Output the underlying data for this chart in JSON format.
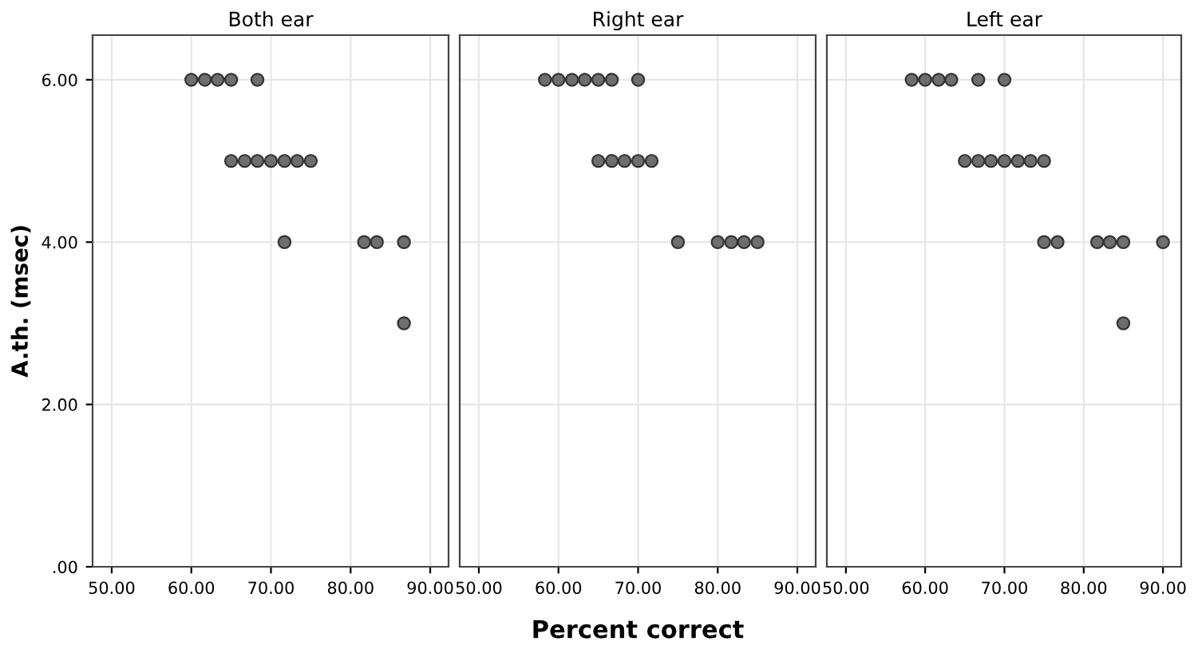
{
  "chart_data": [
    {
      "type": "scatter",
      "title": "Both ear",
      "ylabel": "A.th. (msec)",
      "marker": "circle",
      "grid": true,
      "color": "#6e6e6e",
      "x": [
        60,
        61.7,
        63.3,
        65,
        68.3,
        65,
        66.7,
        68.3,
        70,
        71.7,
        73.3,
        75,
        71.7,
        81.7,
        83.3,
        86.7,
        86.7
      ],
      "values": [
        6,
        6,
        6,
        6,
        6,
        5,
        5,
        5,
        5,
        5,
        5,
        5,
        4,
        4,
        4,
        4,
        3
      ],
      "xlim": [
        47.6,
        92.3
      ],
      "ylim": [
        0,
        6.55
      ],
      "xticks": [
        {
          "value": 50,
          "label": "50.00"
        },
        {
          "value": 60,
          "label": "60.00"
        },
        {
          "value": 70,
          "label": "70.00"
        },
        {
          "value": 80,
          "label": "80.00"
        },
        {
          "value": 90,
          "label": "90.00"
        }
      ],
      "yticks": [
        {
          "value": 0,
          "label": ".00"
        },
        {
          "value": 2,
          "label": "2.00"
        },
        {
          "value": 4,
          "label": "4.00"
        },
        {
          "value": 6,
          "label": "6.00"
        }
      ]
    },
    {
      "type": "scatter",
      "title": "Right ear",
      "xlabel": "Percent correct",
      "marker": "circle",
      "grid": true,
      "color": "#6e6e6e",
      "tick_labels": "x",
      "x": [
        58.3,
        60,
        61.7,
        63.3,
        65,
        66.7,
        70,
        65,
        66.7,
        68.3,
        70,
        71.7,
        75,
        80,
        81.7,
        83.3,
        85
      ],
      "values": [
        6,
        6,
        6,
        6,
        6,
        6,
        6,
        5,
        5,
        5,
        5,
        5,
        4,
        4,
        4,
        4,
        4
      ],
      "xlim": [
        47.6,
        92.3
      ],
      "ylim": [
        0,
        6.55
      ],
      "xticks": [
        {
          "value": 50,
          "label": "50.00"
        },
        {
          "value": 60,
          "label": "60.00"
        },
        {
          "value": 70,
          "label": "70.00"
        },
        {
          "value": 80,
          "label": "80.00"
        },
        {
          "value": 90,
          "label": "90.00"
        }
      ],
      "yticks": [
        {
          "value": 0,
          "label": null
        },
        {
          "value": 2,
          "label": null
        },
        {
          "value": 4,
          "label": null
        },
        {
          "value": 6,
          "label": null
        }
      ]
    },
    {
      "type": "scatter",
      "title": "Left ear",
      "marker": "circle",
      "grid": true,
      "color": "#6e6e6e",
      "tick_labels": "x",
      "x": [
        58.3,
        60,
        61.7,
        63.3,
        66.7,
        70,
        65,
        66.7,
        68.3,
        70,
        71.7,
        73.3,
        75,
        75,
        76.7,
        81.7,
        83.3,
        85,
        90,
        85
      ],
      "values": [
        6,
        6,
        6,
        6,
        6,
        6,
        5,
        5,
        5,
        5,
        5,
        5,
        5,
        4,
        4,
        4,
        4,
        4,
        4,
        3
      ],
      "xlim": [
        47.6,
        92.3
      ],
      "ylim": [
        0,
        6.55
      ],
      "xticks": [
        {
          "value": 50,
          "label": "50.00"
        },
        {
          "value": 60,
          "label": "60.00"
        },
        {
          "value": 70,
          "label": "70.00"
        },
        {
          "value": 80,
          "label": "80.00"
        },
        {
          "value": 90,
          "label": "90.00"
        }
      ],
      "yticks": [
        {
          "value": 0,
          "label": null
        },
        {
          "value": 2,
          "label": null
        },
        {
          "value": 4,
          "label": null
        },
        {
          "value": 6,
          "label": null
        }
      ]
    }
  ]
}
